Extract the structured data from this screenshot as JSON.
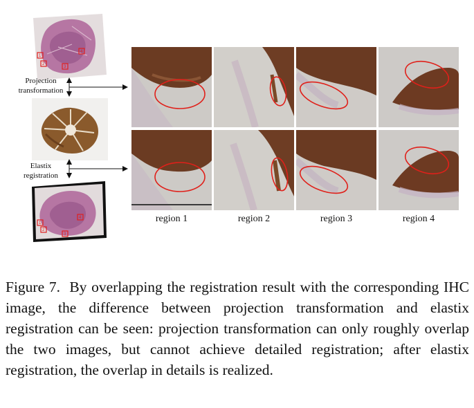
{
  "left_panel": {
    "projection_label_line1": "Projection",
    "projection_label_line2": "transformation",
    "elastix_label_line1": "Elastix",
    "elastix_label_line2": "registration",
    "markers_top": [
      "1",
      "2",
      "3",
      "4"
    ],
    "markers_bottom": [
      "1",
      "2",
      "3",
      "4"
    ]
  },
  "regions": [
    "region 1",
    "region 2",
    "region 3",
    "region 4"
  ],
  "caption": {
    "figure_label": "Figure 7.",
    "text": "By overlapping the registration result with the corresponding IHC image, the difference between projection transformation and elastix registration can be seen: projection transformation can only roughly overlap the two images, but cannot achieve detailed registration; after elastix registration, the overlap in details is realized."
  },
  "colors": {
    "he_pink": "#b9709e",
    "ihc_brown": "#7a4c26",
    "background_tissue": "#cbc8c4",
    "ellipse_red": "#e0201a",
    "marker_red": "#e02020"
  }
}
